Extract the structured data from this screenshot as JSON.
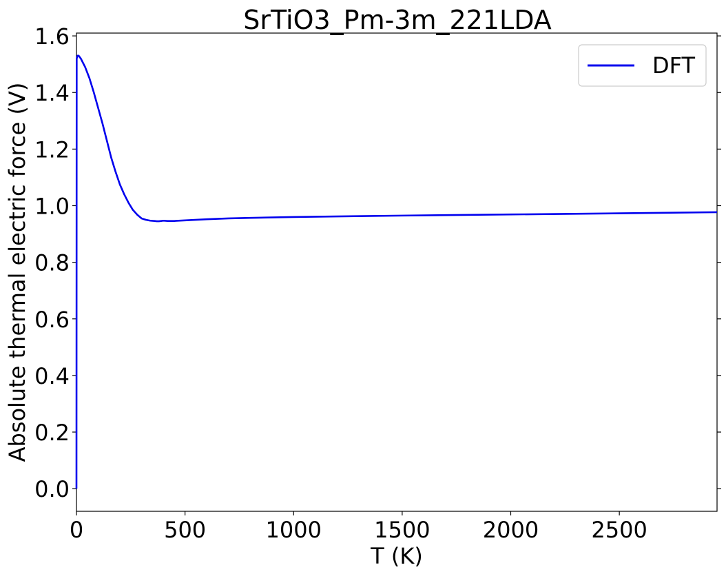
{
  "chart_data": {
    "type": "line",
    "title": "SrTiO3_Pm-3m_221LDA",
    "xlabel": "T (K)",
    "ylabel": "Absolute thermal electric force (V)",
    "xlim": [
      0,
      2950
    ],
    "ylim": [
      -0.08,
      1.61
    ],
    "xticks": [
      0,
      500,
      1000,
      1500,
      2000,
      2500
    ],
    "yticks": [
      0.0,
      0.2,
      0.4,
      0.6,
      0.8,
      1.0,
      1.2,
      1.4,
      1.6
    ],
    "xtick_labels": [
      "0",
      "500",
      "1000",
      "1500",
      "2000",
      "2500"
    ],
    "ytick_labels": [
      "0.0",
      "0.2",
      "0.4",
      "0.6",
      "0.8",
      "1.0",
      "1.2",
      "1.4",
      "1.6"
    ],
    "legend_position": "top-right",
    "series": [
      {
        "name": "DFT",
        "color": "#0000ee",
        "x": [
          0,
          1,
          5,
          10,
          20,
          30,
          40,
          60,
          80,
          100,
          120,
          140,
          160,
          180,
          200,
          220,
          240,
          260,
          280,
          300,
          320,
          340,
          360,
          370,
          380,
          390,
          400,
          420,
          450,
          500,
          600,
          700,
          800,
          1000,
          1200,
          1500,
          2000,
          2500,
          2950
        ],
        "y": [
          0.0,
          1.52,
          1.53,
          1.53,
          1.52,
          1.505,
          1.49,
          1.45,
          1.4,
          1.345,
          1.29,
          1.23,
          1.17,
          1.12,
          1.075,
          1.04,
          1.01,
          0.985,
          0.968,
          0.955,
          0.95,
          0.947,
          0.946,
          0.945,
          0.945,
          0.946,
          0.947,
          0.946,
          0.946,
          0.948,
          0.952,
          0.955,
          0.957,
          0.96,
          0.962,
          0.965,
          0.969,
          0.973,
          0.977
        ]
      }
    ]
  }
}
